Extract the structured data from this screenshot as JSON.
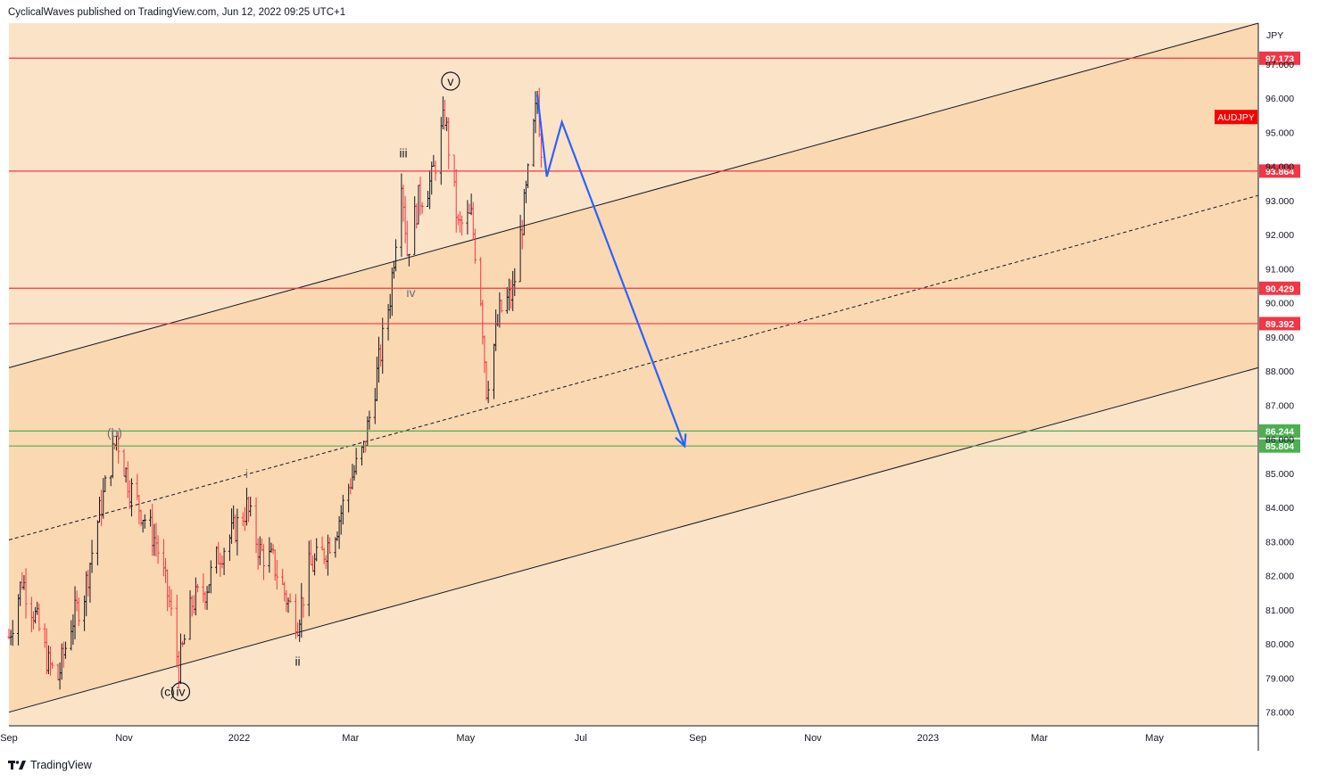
{
  "header": {
    "published_by": "CyclicalWaves published on TradingView.com, Jun 12, 2022 09:25 UTC+1"
  },
  "footer": {
    "brand": "TradingView",
    "logo_icon": "tradingview-logo-icon"
  },
  "colors": {
    "outer_band": "#fbe3c8",
    "channel_fill": "#fad8b2",
    "candle_up": "#131722",
    "candle_down": "#f23645",
    "resistance_line": "#f23645",
    "support_line": "#4caf50",
    "projection": "#2962ff",
    "symbol_badge": "#f70000"
  },
  "chart_data": {
    "type": "ohlc-bar",
    "symbol": "AUDJPY",
    "currency_label": "JPY",
    "x_axis": {
      "range": [
        "2021-09-01",
        "2023-06-25"
      ],
      "ticks": [
        {
          "date": "2021-09-01",
          "label": "Sep"
        },
        {
          "date": "2021-11-01",
          "label": "Nov"
        },
        {
          "date": "2022-01-01",
          "label": "2022"
        },
        {
          "date": "2022-03-01",
          "label": "Mar"
        },
        {
          "date": "2022-05-01",
          "label": "May"
        },
        {
          "date": "2022-07-01",
          "label": "Jul"
        },
        {
          "date": "2022-09-01",
          "label": "Sep"
        },
        {
          "date": "2022-11-01",
          "label": "Nov"
        },
        {
          "date": "2023-01-01",
          "label": "2023"
        },
        {
          "date": "2023-03-01",
          "label": "Mar"
        },
        {
          "date": "2023-05-01",
          "label": "May"
        }
      ]
    },
    "y_axis": {
      "range": [
        77.6,
        98.2
      ],
      "ticks": [
        "78.000",
        "79.000",
        "80.000",
        "81.000",
        "82.000",
        "83.000",
        "84.000",
        "85.000",
        "86.000",
        "87.000",
        "88.000",
        "89.000",
        "90.000",
        "91.000",
        "92.000",
        "93.000",
        "94.000",
        "95.000",
        "96.000",
        "97.000"
      ]
    },
    "price_path": [
      {
        "date": "2021-09-01",
        "price": 80.2
      },
      {
        "date": "2021-09-08",
        "price": 81.9
      },
      {
        "date": "2021-09-15",
        "price": 80.8
      },
      {
        "date": "2021-09-22",
        "price": 79.4
      },
      {
        "date": "2021-09-27",
        "price": 79.0
      },
      {
        "date": "2021-10-04",
        "price": 80.6
      },
      {
        "date": "2021-10-11",
        "price": 81.5
      },
      {
        "date": "2021-10-18",
        "price": 83.6
      },
      {
        "date": "2021-10-25",
        "price": 85.3
      },
      {
        "date": "2021-10-28",
        "price": 86.1
      },
      {
        "date": "2021-11-04",
        "price": 84.6
      },
      {
        "date": "2021-11-11",
        "price": 83.8
      },
      {
        "date": "2021-11-18",
        "price": 83.0
      },
      {
        "date": "2021-11-25",
        "price": 81.2
      },
      {
        "date": "2021-11-30",
        "price": 79.3
      },
      {
        "date": "2021-12-07",
        "price": 81.2
      },
      {
        "date": "2021-12-14",
        "price": 81.6
      },
      {
        "date": "2021-12-21",
        "price": 82.6
      },
      {
        "date": "2021-12-28",
        "price": 83.2
      },
      {
        "date": "2022-01-05",
        "price": 84.0
      },
      {
        "date": "2022-01-12",
        "price": 82.7
      },
      {
        "date": "2022-01-19",
        "price": 82.4
      },
      {
        "date": "2022-01-27",
        "price": 81.2
      },
      {
        "date": "2022-02-01",
        "price": 80.7
      },
      {
        "date": "2022-02-07",
        "price": 82.2
      },
      {
        "date": "2022-02-14",
        "price": 82.6
      },
      {
        "date": "2022-02-22",
        "price": 83.5
      },
      {
        "date": "2022-03-01",
        "price": 84.8
      },
      {
        "date": "2022-03-08",
        "price": 85.7
      },
      {
        "date": "2022-03-15",
        "price": 87.9
      },
      {
        "date": "2022-03-22",
        "price": 90.2
      },
      {
        "date": "2022-03-28",
        "price": 93.8
      },
      {
        "date": "2022-03-31",
        "price": 91.5
      },
      {
        "date": "2022-04-06",
        "price": 93.0
      },
      {
        "date": "2022-04-13",
        "price": 93.6
      },
      {
        "date": "2022-04-20",
        "price": 95.5
      },
      {
        "date": "2022-04-27",
        "price": 92.2
      },
      {
        "date": "2022-05-04",
        "price": 92.5
      },
      {
        "date": "2022-05-09",
        "price": 90.2
      },
      {
        "date": "2022-05-12",
        "price": 87.5
      },
      {
        "date": "2022-05-19",
        "price": 89.7
      },
      {
        "date": "2022-05-26",
        "price": 90.3
      },
      {
        "date": "2022-06-02",
        "price": 93.2
      },
      {
        "date": "2022-06-08",
        "price": 96.0
      },
      {
        "date": "2022-06-10",
        "price": 94.6
      }
    ],
    "channel": {
      "upper": [
        {
          "date": "2021-09-01",
          "price": 88.1
        },
        {
          "date": "2023-06-25",
          "price": 98.2
        }
      ],
      "middle": [
        {
          "date": "2021-09-01",
          "price": 83.05
        },
        {
          "date": "2023-06-25",
          "price": 93.15
        }
      ],
      "lower": [
        {
          "date": "2021-09-01",
          "price": 78.0
        },
        {
          "date": "2023-06-25",
          "price": 88.1
        }
      ]
    },
    "horizontal_levels": [
      {
        "value": "97.173",
        "kind": "resistance"
      },
      {
        "value": "93.864",
        "kind": "resistance"
      },
      {
        "value": "90.429",
        "kind": "resistance"
      },
      {
        "value": "89.392",
        "kind": "resistance"
      },
      {
        "value": "86.244",
        "kind": "support"
      },
      {
        "value": "85.804",
        "kind": "support"
      }
    ],
    "projection_path": [
      {
        "date": "2022-06-08",
        "price": 96.1
      },
      {
        "date": "2022-06-13",
        "price": 93.7
      },
      {
        "date": "2022-06-21",
        "price": 95.3
      },
      {
        "date": "2022-08-25",
        "price": 85.8
      }
    ],
    "wave_labels": [
      {
        "text": "v",
        "circled": true,
        "date": "2022-04-23",
        "price": 96.5
      },
      {
        "text": "iii",
        "circled": false,
        "date": "2022-03-29",
        "price": 94.4
      },
      {
        "text": "iv",
        "circled": false,
        "date": "2022-04-02",
        "price": 90.3
      },
      {
        "text": "(b)",
        "circled": false,
        "date": "2021-10-27",
        "price": 86.2
      },
      {
        "text": "i",
        "circled": false,
        "date": "2022-01-05",
        "price": 85.0
      },
      {
        "text": "ii",
        "circled": false,
        "date": "2022-02-01",
        "price": 79.5
      },
      {
        "text": "(c)",
        "circled": false,
        "date": "2021-11-24",
        "price": 78.6
      },
      {
        "text": "iv",
        "circled": true,
        "date": "2021-12-01",
        "price": 78.6
      }
    ]
  }
}
